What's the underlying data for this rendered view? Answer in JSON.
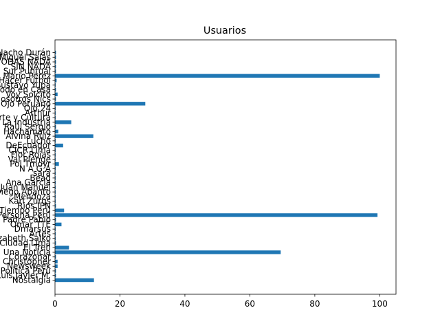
{
  "chart_data": {
    "type": "bar",
    "orientation": "horizontal",
    "title": "Usuarios",
    "xlabel": "",
    "ylabel": "",
    "xlim": [
      0,
      105
    ],
    "xticks": [
      0,
      20,
      40,
      60,
      80,
      100
    ],
    "grid": false,
    "legend": "none",
    "bar_color": "#1f77b4",
    "categories": [
      "Nacho Durán",
      "Miguel Salas",
      "TODAS NADA",
      "SIN NADA",
      "Sur Puntual",
      "Mario Pérez",
      "Hacer Fútbol",
      "Gustavo Yupa",
      "Todo en Casa",
      "Voy Solcito",
      "Nosotros Nics",
      "Ojo Peruano",
      "Ojo 24",
      "Arthur",
      "Arte y Cultura",
      "La Industria",
      "Raúl Sergio",
      "Hachamato",
      "Alvina Ruiz",
      "Lucho",
      "DeEcuador",
      "CICR Lima",
      "Flor Rojas",
      "Val Plenge",
      "Pol Tmoyr",
      "N A G A",
      "sara",
      "Bead",
      "Ana García",
      "Juan Manuel",
      "Diego Abanto",
      "Mendoza",
      "Karl Zurgs",
      "Rios IPN",
      "Tiempo Perú",
      "Persona Perú",
      "Padre Pablo",
      "Omar TTE",
      "Dmarsus",
      "Artes",
      "Elizabeth Salko",
      "Ciudad Lima",
      "El Tren",
      "Una Noticia",
      "Corazonar",
      "Christopher",
      "Newsweek",
      "Política Perú",
      "Luis Javier M.",
      "Nostalgia"
    ],
    "values": [
      0.3,
      0.3,
      0.3,
      0.3,
      0.3,
      100,
      0.5,
      0.2,
      0.3,
      0.8,
      0.3,
      27.8,
      0.2,
      0.2,
      0.2,
      5.0,
      0.3,
      1.0,
      11.8,
      0.2,
      2.5,
      0.2,
      0.2,
      0.2,
      1.2,
      0.2,
      0.2,
      0.2,
      0.2,
      0.2,
      0.2,
      0.2,
      0.2,
      0.3,
      2.8,
      99.3,
      0.3,
      2.0,
      0.2,
      0.2,
      0.2,
      0.3,
      4.3,
      69.5,
      0.3,
      0.8,
      0.8,
      0.3,
      0.3,
      12.0
    ]
  }
}
